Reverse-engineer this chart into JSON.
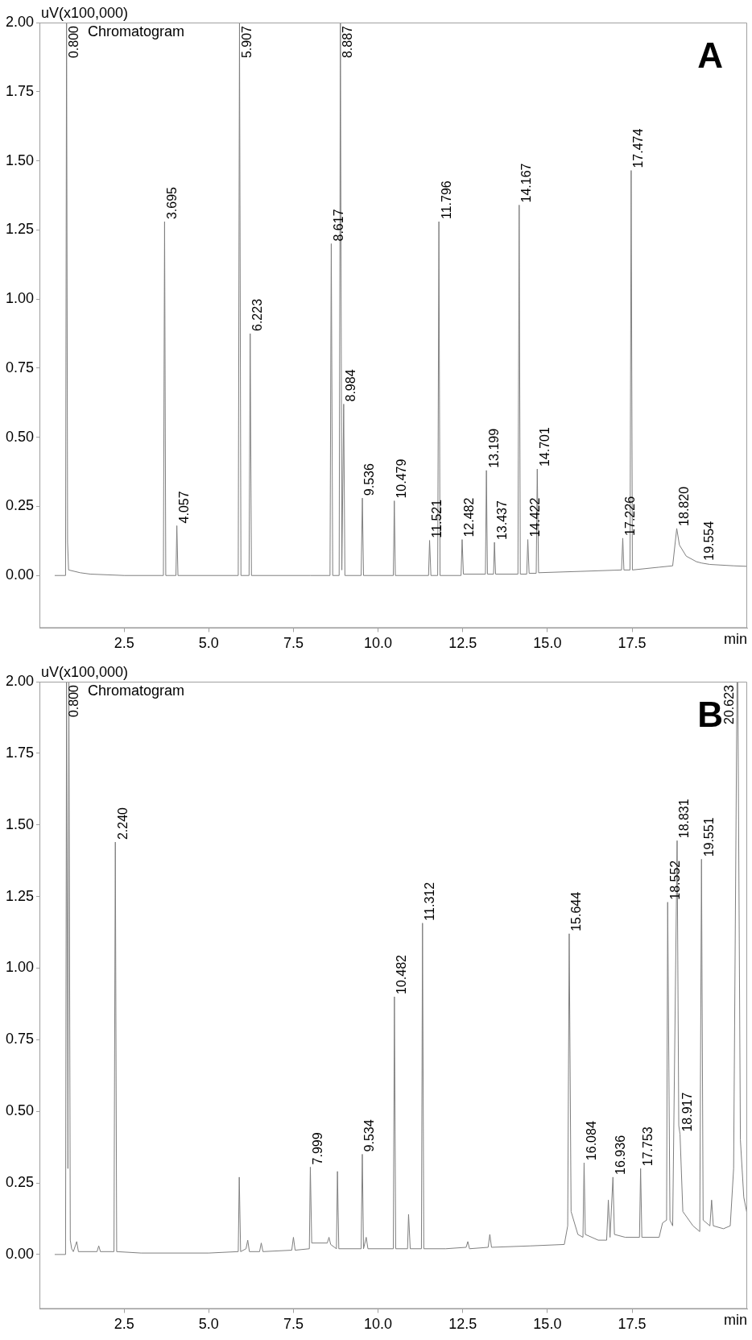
{
  "chart_data": [
    {
      "type": "line",
      "title": "A",
      "subtitle": "Chromatogram",
      "xlabel": "min",
      "ylabel": "uV(x100,000)",
      "xlim": [
        0,
        20.9
      ],
      "ylim": [
        -0.19,
        2.0
      ],
      "xticks": [
        2.5,
        {
          "value": 5,
          "label": "5.0"
        },
        7.5,
        {
          "value": 10,
          "label": "10.0"
        },
        12.5,
        {
          "value": 15,
          "label": "15.0"
        },
        17.5
      ],
      "yticks": [
        {
          "value": 0,
          "label": "0.00"
        },
        0.25,
        {
          "value": 0.5,
          "label": "0.50"
        },
        0.75,
        {
          "value": 1,
          "label": "1.00"
        },
        1.25,
        {
          "value": 1.5,
          "label": "1.50"
        },
        1.75,
        {
          "value": 2,
          "label": "2.00"
        }
      ],
      "grid": false,
      "legend": false,
      "marker": "none",
      "line_style": "solid",
      "x": [
        0.45,
        0.77,
        0.8,
        0.83,
        0.86,
        1.2,
        1.5,
        2.5,
        3.66,
        3.695,
        3.73,
        4.03,
        4.057,
        4.09,
        5.87,
        5.907,
        5.95,
        6.19,
        6.223,
        6.26,
        8.0,
        8.58,
        8.617,
        8.66,
        8.85,
        8.887,
        8.93,
        8.984,
        9.02,
        9.5,
        9.536,
        9.57,
        10.45,
        10.479,
        10.51,
        11.49,
        11.521,
        11.56,
        11.76,
        11.796,
        11.83,
        12.45,
        12.482,
        12.52,
        13.17,
        13.199,
        13.23,
        13.41,
        13.437,
        13.47,
        14.13,
        14.167,
        14.2,
        14.39,
        14.422,
        14.46,
        14.67,
        14.701,
        14.74,
        16.0,
        17.19,
        17.226,
        17.26,
        17.44,
        17.474,
        17.51,
        18.3,
        18.7,
        18.82,
        18.9,
        19.1,
        19.4,
        19.554,
        19.8,
        20.5,
        20.9
      ],
      "series": [
        {
          "color": "#7f7f7f",
          "values": [
            0,
            0,
            2.0,
            0.12,
            0.02,
            0.01,
            0.005,
            0,
            0,
            1.28,
            0,
            0,
            0.18,
            0,
            0,
            2.0,
            0,
            0,
            0.875,
            0,
            0,
            0,
            1.2,
            0,
            0,
            2.0,
            0.02,
            0.62,
            0,
            0,
            0.28,
            0,
            0,
            0.27,
            0,
            0,
            0.127,
            0,
            0,
            1.28,
            0,
            0,
            0.13,
            0.005,
            0.005,
            0.38,
            0.005,
            0.005,
            0.12,
            0.005,
            0.005,
            1.34,
            0.005,
            0.005,
            0.13,
            0.008,
            0.008,
            0.385,
            0.01,
            0.015,
            0.02,
            0.135,
            0.02,
            0.02,
            1.465,
            0.02,
            0.03,
            0.035,
            0.17,
            0.11,
            0.07,
            0.05,
            0.045,
            0.04,
            0.035,
            0.033
          ]
        }
      ],
      "annotations": [
        {
          "text": "0.800",
          "x": 0.8,
          "y": 2.0
        },
        {
          "text": "3.695",
          "x": 3.695,
          "y": 1.28
        },
        {
          "text": "4.057",
          "x": 4.057,
          "y": 0.18
        },
        {
          "text": "5.907",
          "x": 5.907,
          "y": 2.0
        },
        {
          "text": "6.223",
          "x": 6.223,
          "y": 0.875
        },
        {
          "text": "8.617",
          "x": 8.617,
          "y": 1.2
        },
        {
          "text": "8.887",
          "x": 8.887,
          "y": 2.0
        },
        {
          "text": "8.984",
          "x": 8.984,
          "y": 0.62
        },
        {
          "text": "9.536",
          "x": 9.536,
          "y": 0.28
        },
        {
          "text": "10.479",
          "x": 10.479,
          "y": 0.27
        },
        {
          "text": "11.521",
          "x": 11.521,
          "y": 0.127
        },
        {
          "text": "11.796",
          "x": 11.796,
          "y": 1.28
        },
        {
          "text": "12.482",
          "x": 12.482,
          "y": 0.13
        },
        {
          "text": "13.199",
          "x": 13.199,
          "y": 0.38
        },
        {
          "text": "13.437",
          "x": 13.437,
          "y": 0.12
        },
        {
          "text": "14.167",
          "x": 14.167,
          "y": 1.34
        },
        {
          "text": "14.422",
          "x": 14.422,
          "y": 0.13
        },
        {
          "text": "14.701",
          "x": 14.701,
          "y": 0.385
        },
        {
          "text": "17.226",
          "x": 17.226,
          "y": 0.135
        },
        {
          "text": "17.474",
          "x": 17.474,
          "y": 1.465
        },
        {
          "text": "18.820",
          "x": 18.82,
          "y": 0.17
        },
        {
          "text": "19.554",
          "x": 19.554,
          "y": 0.045
        }
      ]
    },
    {
      "type": "line",
      "title": "B",
      "subtitle": "Chromatogram",
      "xlabel": "min",
      "ylabel": "uV(x100,000)",
      "xlim": [
        0,
        20.9
      ],
      "ylim": [
        -0.19,
        2.0
      ],
      "xticks": [
        2.5,
        {
          "value": 5,
          "label": "5.0"
        },
        7.5,
        {
          "value": 10,
          "label": "10.0"
        },
        12.5,
        {
          "value": 15,
          "label": "15.0"
        },
        17.5
      ],
      "yticks": [
        {
          "value": 0,
          "label": "0.00"
        },
        0.25,
        {
          "value": 0.5,
          "label": "0.50"
        },
        0.75,
        {
          "value": 1,
          "label": "1.00"
        },
        1.25,
        {
          "value": 1.5,
          "label": "1.50"
        },
        1.75,
        {
          "value": 2,
          "label": "2.00"
        }
      ],
      "grid": false,
      "legend": false,
      "marker": "none",
      "line_style": "solid",
      "x": [
        0.45,
        0.77,
        0.8,
        0.84,
        0.868,
        0.91,
        0.95,
        1.0,
        1.1,
        1.15,
        1.7,
        1.75,
        1.8,
        2.2,
        2.24,
        2.28,
        3.0,
        5.0,
        5.87,
        5.9,
        5.94,
        6.1,
        6.15,
        6.2,
        6.5,
        6.55,
        6.6,
        7.45,
        7.5,
        7.55,
        7.97,
        7.999,
        8.04,
        8.5,
        8.55,
        8.6,
        8.77,
        8.8,
        8.84,
        9.5,
        9.534,
        9.57,
        9.65,
        9.7,
        10.45,
        10.482,
        10.52,
        10.87,
        10.9,
        10.95,
        11.28,
        11.312,
        11.35,
        12.0,
        12.6,
        12.65,
        12.7,
        13.25,
        13.3,
        13.35,
        14.5,
        15.5,
        15.6,
        15.644,
        15.7,
        15.9,
        16.05,
        16.084,
        16.12,
        16.5,
        16.75,
        16.8,
        16.85,
        16.936,
        16.98,
        17.3,
        17.72,
        17.753,
        17.79,
        18.3,
        18.4,
        18.52,
        18.552,
        18.62,
        18.7,
        18.831,
        18.88,
        18.917,
        19.0,
        19.3,
        19.5,
        19.551,
        19.6,
        19.8,
        19.85,
        19.9,
        20.2,
        20.4,
        20.5,
        20.6,
        20.623,
        20.7,
        20.8,
        20.9
      ],
      "series": [
        {
          "color": "#7f7f7f",
          "values": [
            0,
            0,
            2.0,
            0.3,
            2.0,
            0.05,
            0.02,
            0.01,
            0.045,
            0.01,
            0.01,
            0.03,
            0.01,
            0.01,
            1.44,
            0.01,
            0.005,
            0.005,
            0.01,
            0.27,
            0.01,
            0.02,
            0.05,
            0.01,
            0.01,
            0.04,
            0.01,
            0.015,
            0.06,
            0.015,
            0.02,
            0.305,
            0.04,
            0.04,
            0.06,
            0.035,
            0.02,
            0.29,
            0.02,
            0.02,
            0.35,
            0.02,
            0.06,
            0.02,
            0.02,
            0.9,
            0.02,
            0.02,
            0.14,
            0.02,
            0.02,
            1.157,
            0.02,
            0.02,
            0.025,
            0.045,
            0.02,
            0.025,
            0.07,
            0.025,
            0.03,
            0.035,
            0.1,
            1.12,
            0.15,
            0.07,
            0.06,
            0.32,
            0.07,
            0.05,
            0.05,
            0.19,
            0.06,
            0.27,
            0.07,
            0.06,
            0.06,
            0.3,
            0.06,
            0.06,
            0.11,
            0.12,
            1.23,
            0.12,
            0.1,
            1.445,
            0.45,
            0.42,
            0.15,
            0.1,
            0.08,
            1.38,
            0.12,
            0.1,
            0.19,
            0.1,
            0.09,
            0.1,
            0.3,
            2.0,
            2.0,
            0.4,
            0.2,
            0.14
          ]
        }
      ],
      "annotations": [
        {
          "text": "0.800",
          "x": 0.8,
          "y": 2.0
        },
        {
          "text": "2.240",
          "x": 2.24,
          "y": 1.44
        },
        {
          "text": "7.999",
          "x": 7.999,
          "y": 0.305
        },
        {
          "text": "9.534",
          "x": 9.534,
          "y": 0.35
        },
        {
          "text": "10.482",
          "x": 10.482,
          "y": 0.9
        },
        {
          "text": "11.312",
          "x": 11.312,
          "y": 1.157
        },
        {
          "text": "15.644",
          "x": 15.644,
          "y": 1.12
        },
        {
          "text": "16.084",
          "x": 16.084,
          "y": 0.32
        },
        {
          "text": "16.936",
          "x": 16.936,
          "y": 0.27
        },
        {
          "text": "17.753",
          "x": 17.753,
          "y": 0.3
        },
        {
          "text": "18.552",
          "x": 18.552,
          "y": 1.23
        },
        {
          "text": "18.831",
          "x": 18.831,
          "y": 1.445
        },
        {
          "text": "18.917",
          "x": 18.917,
          "y": 0.42
        },
        {
          "text": "19.551",
          "x": 19.551,
          "y": 1.38
        },
        {
          "text": "20.623",
          "x": 20.623,
          "y": 2.0
        }
      ]
    }
  ]
}
